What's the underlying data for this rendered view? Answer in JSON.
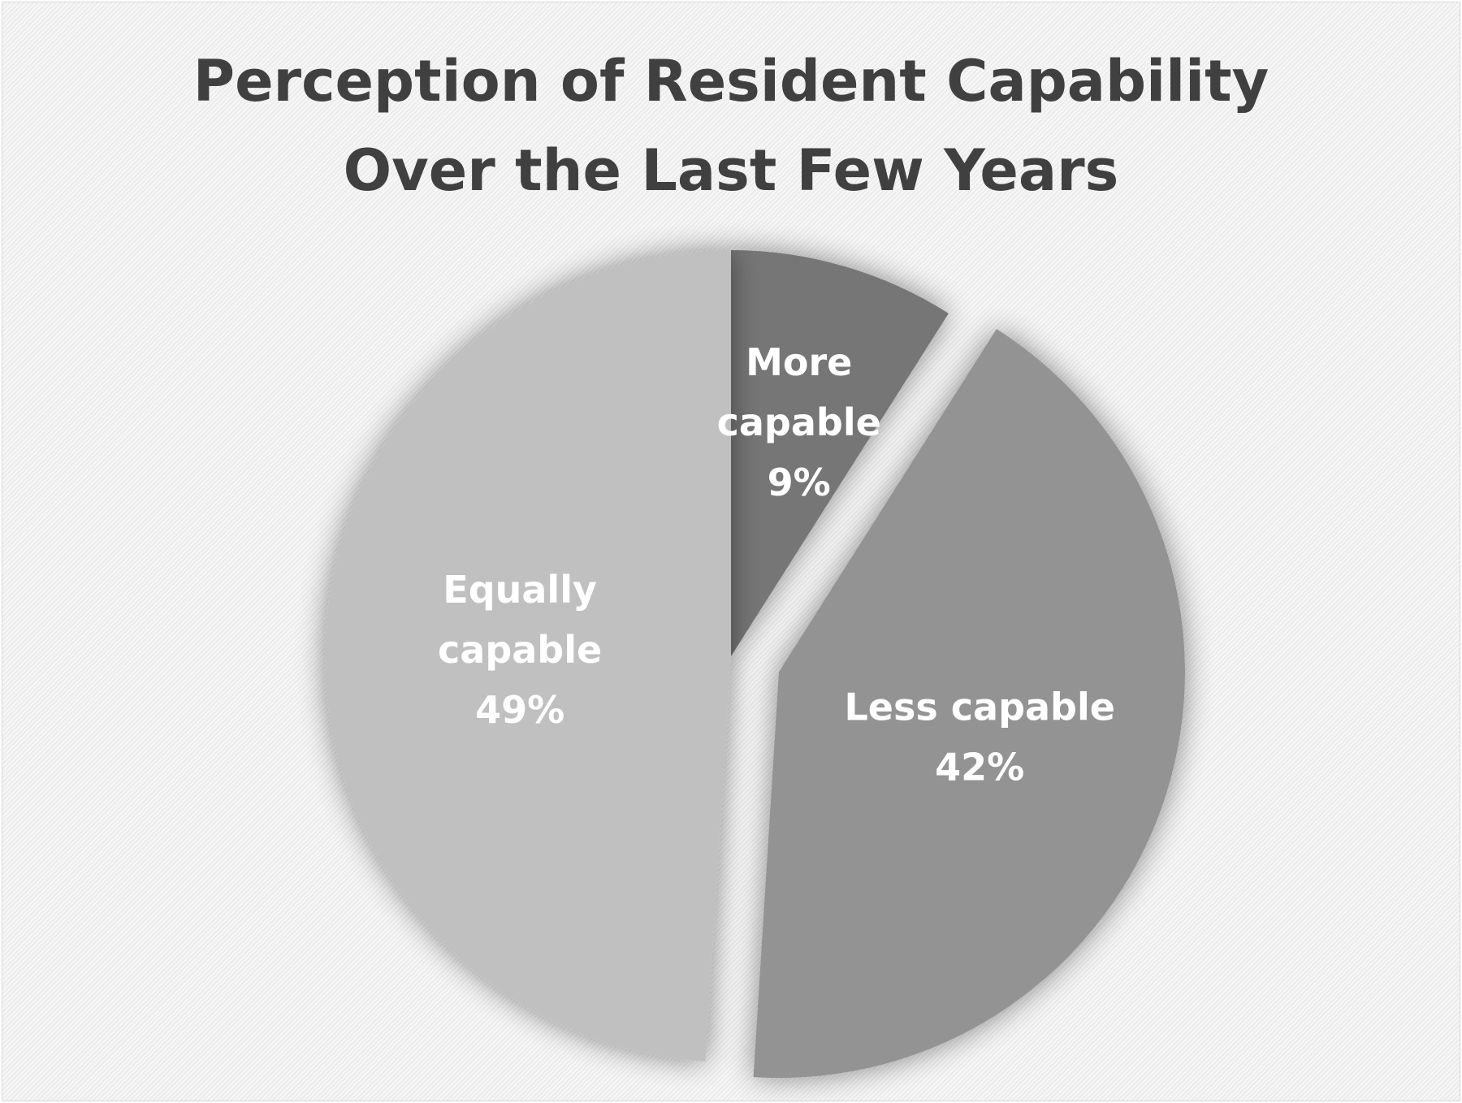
{
  "chart_data": {
    "type": "pie",
    "title_lines": [
      "Perception of Resident Capability",
      "Over the Last Few Years"
    ],
    "slices": [
      {
        "name": "More capable",
        "value": 9,
        "label_lines": [
          "More",
          "capable",
          "9%"
        ],
        "color": "#767676"
      },
      {
        "name": "Less capable",
        "value": 42,
        "label_lines": [
          "Less capable",
          "42%"
        ],
        "color": "#939393"
      },
      {
        "name": "Equally capable",
        "value": 49,
        "label_lines": [
          "Equally",
          "capable",
          "49%"
        ],
        "color": "#c0c0c0"
      }
    ],
    "start_angle": "12 o'clock",
    "direction": "clockwise",
    "exploded_slice": "Less capable",
    "legend": "none",
    "grid": false
  }
}
